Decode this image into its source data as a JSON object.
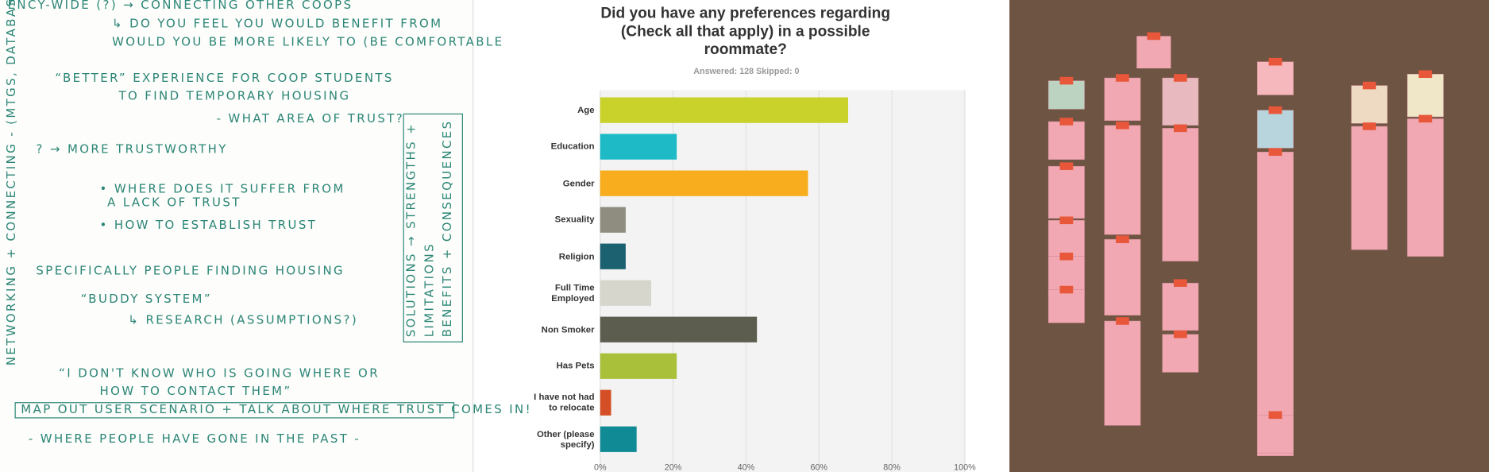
{
  "chart_data": {
    "type": "hbar",
    "title": "Did you have any preferences regarding (Check all that apply) in a possible roommate?",
    "subtitle": "Answered: 128   Skipped: 0",
    "categories": [
      "Age",
      "Education",
      "Gender",
      "Sexuality",
      "Religion",
      "Full Time Employed",
      "Non Smoker",
      "Has Pets",
      "I have not had to relocate",
      "Other (please specify)"
    ],
    "values": [
      68,
      21,
      57,
      7,
      7,
      14,
      43,
      21,
      3,
      10
    ],
    "colors": [
      "#c9d22a",
      "#1ebbc6",
      "#f7ad1d",
      "#8e8d7f",
      "#1b6170",
      "#d7d6cc",
      "#5d5d4f",
      "#a8c03a",
      "#d44f26",
      "#108b96"
    ],
    "xlim": [
      0,
      100
    ],
    "xticks": [
      {
        "value": 0,
        "label": "0%"
      },
      {
        "value": 20,
        "label": "20%"
      },
      {
        "value": 40,
        "label": "40%"
      },
      {
        "value": 60,
        "label": "60%"
      },
      {
        "value": 80,
        "label": "80%"
      },
      {
        "value": 100,
        "label": "100%"
      }
    ],
    "grid": true
  },
  "notes": {
    "lines": [
      "ENCY-WIDE (?) → CONNECTING  OTHER  COOPS",
      "↳ DO YOU FEEL YOU WOULD BENEFIT FROM",
      "WOULD YOU BE MORE LIKELY TO (BE COMFORTABLE",
      "“BETTER” EXPERIENCE FOR COOP STUDENTS",
      "TO FIND TEMPORARY HOUSING",
      "- WHAT AREA OF TRUST?",
      "? → MORE TRUSTWORTHY",
      "• WHERE DOES IT SUFFER FROM",
      "A LACK OF TRUST",
      "• HOW TO ESTABLISH TRUST",
      "SPECIFICALLY PEOPLE FINDING HOUSING",
      "“BUDDY SYSTEM”",
      "↳ RESEARCH (ASSUMPTIONS?)",
      "“I DON'T KNOW WHO IS GOING WHERE OR",
      "HOW TO CONTACT THEM”",
      "MAP OUT USER SCENARIO + TALK ABOUT WHERE TRUST COMES IN!",
      "- WHERE PEOPLE HAVE GONE IN THE PAST -"
    ],
    "side": "NETWORKING + CONNECTING - (MTGS, DATABASE)",
    "columns": [
      "SOLUTIONS → STRENGTHS +",
      "LIMITATIONS",
      "BENEFITS + CONSEQUENCES"
    ]
  }
}
